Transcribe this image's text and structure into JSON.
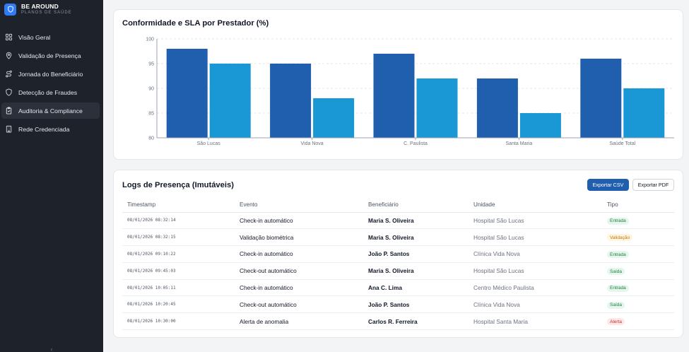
{
  "brand": {
    "name": "BE AROUND",
    "subtitle": "PLANOS DE SAÚDE",
    "logo_icon": "shield-icon"
  },
  "sidebar": {
    "items": [
      {
        "label": "Visão Geral",
        "icon": "grid-icon",
        "active": false
      },
      {
        "label": "Validação de Presença",
        "icon": "location-pin-icon",
        "active": false
      },
      {
        "label": "Jornada do Beneficiário",
        "icon": "route-icon",
        "active": false
      },
      {
        "label": "Detecção de Fraudes",
        "icon": "shield-icon",
        "active": false
      },
      {
        "label": "Auditoria & Compliance",
        "icon": "clipboard-check-icon",
        "active": true
      },
      {
        "label": "Rede Credenciada",
        "icon": "building-icon",
        "active": false
      }
    ],
    "collapse_icon": "chevron-left-icon"
  },
  "colors": {
    "sidebar_bg": "#1e222b",
    "primary_bar": "#1f5fae",
    "secondary_bar": "#1a98d5",
    "accent": "#2f7cf6"
  },
  "chart": {
    "title": "Conformidade e SLA por Prestador (%)"
  },
  "chart_data": {
    "type": "bar",
    "title": "Conformidade e SLA por Prestador (%)",
    "categories": [
      "São Lucas",
      "Vida Nova",
      "C. Paulista",
      "Santa Maria",
      "Saúde Total"
    ],
    "series": [
      {
        "values": [
          98,
          95,
          97,
          92,
          96
        ],
        "color": "#1f5fae"
      },
      {
        "values": [
          95,
          88,
          92,
          85,
          90
        ],
        "color": "#1a98d5"
      }
    ],
    "ylim": [
      80,
      100
    ],
    "yticks": [
      80,
      85,
      90,
      95,
      100
    ],
    "grid": true,
    "xlabel": "",
    "ylabel": ""
  },
  "logs": {
    "title": "Logs de Presença (Imutáveis)",
    "export_csv": "Exportar CSV",
    "export_pdf": "Exportar PDF",
    "columns": [
      "Timestamp",
      "Evento",
      "Beneficiário",
      "Unidade",
      "Tipo"
    ],
    "rows": [
      {
        "timestamp": "08/01/2026 08:32:14",
        "event": "Check-in automático",
        "beneficiary": "Maria S. Oliveira",
        "unit": "Hospital São Lucas",
        "type": "Entrada",
        "tone": "green"
      },
      {
        "timestamp": "08/01/2026 08:32:15",
        "event": "Validação biométrica",
        "beneficiary": "Maria S. Oliveira",
        "unit": "Hospital São Lucas",
        "type": "Validação",
        "tone": "amber"
      },
      {
        "timestamp": "08/01/2026 09:10:22",
        "event": "Check-in automático",
        "beneficiary": "João P. Santos",
        "unit": "Clínica Vida Nova",
        "type": "Entrada",
        "tone": "green"
      },
      {
        "timestamp": "08/01/2026 09:45:03",
        "event": "Check-out automático",
        "beneficiary": "Maria S. Oliveira",
        "unit": "Hospital São Lucas",
        "type": "Saída",
        "tone": "green"
      },
      {
        "timestamp": "08/01/2026 10:05:11",
        "event": "Check-in automático",
        "beneficiary": "Ana C. Lima",
        "unit": "Centro Médico Paulista",
        "type": "Entrada",
        "tone": "green"
      },
      {
        "timestamp": "08/01/2026 10:20:45",
        "event": "Check-out automático",
        "beneficiary": "João P. Santos",
        "unit": "Clínica Vida Nova",
        "type": "Saída",
        "tone": "green"
      },
      {
        "timestamp": "08/01/2026 10:30:00",
        "event": "Alerta de anomalia",
        "beneficiary": "Carlos R. Ferreira",
        "unit": "Hospital Santa Maria",
        "type": "Alerta",
        "tone": "red"
      }
    ]
  }
}
